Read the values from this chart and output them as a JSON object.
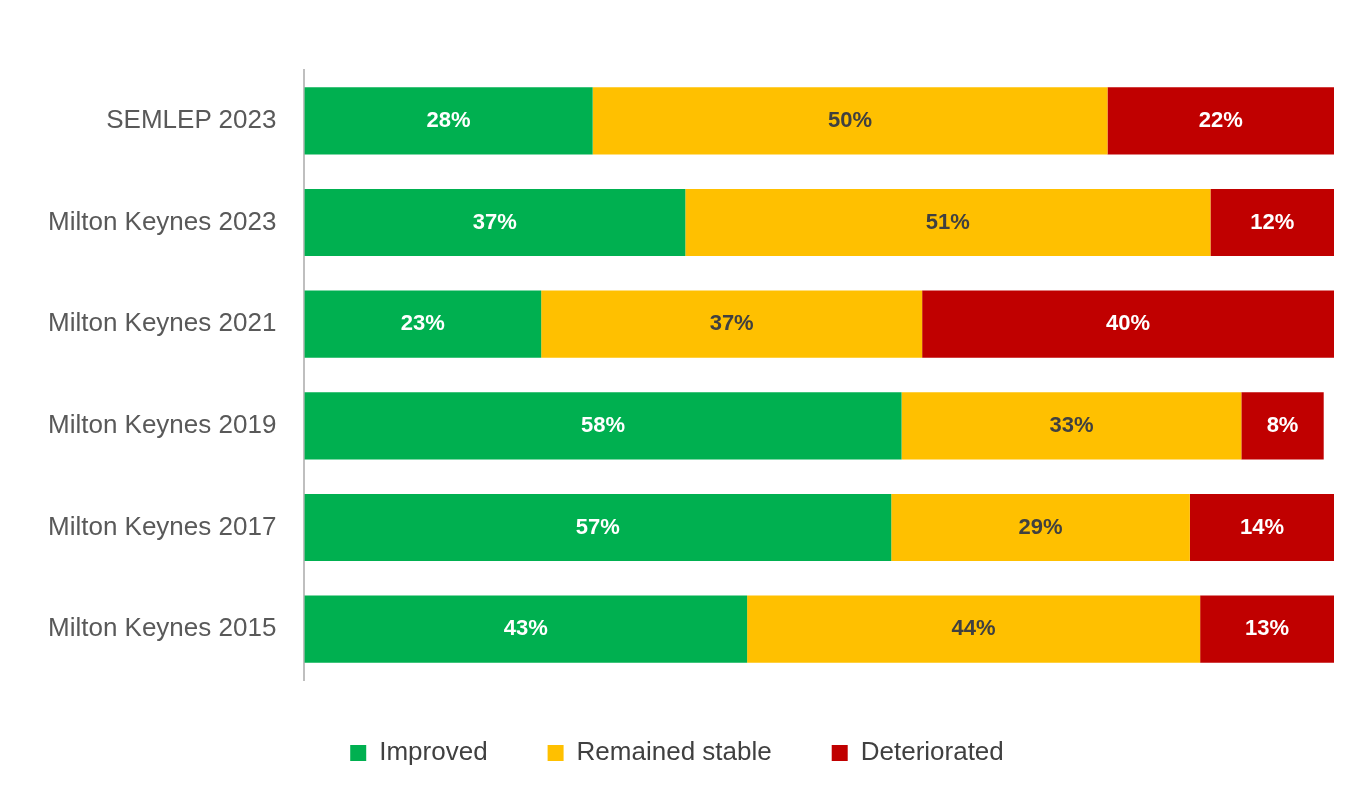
{
  "chart_data": {
    "type": "bar",
    "orientation": "horizontal",
    "stacked": true,
    "categories": [
      "SEMLEP 2023",
      "Milton Keynes 2023",
      "Milton Keynes 2021",
      "Milton Keynes 2019",
      "Milton Keynes 2017",
      "Milton Keynes 2015"
    ],
    "series": [
      {
        "name": "Improved",
        "color": "#00b050",
        "values": [
          28,
          37,
          23,
          58,
          57,
          43
        ],
        "value_labels": [
          "28%",
          "37%",
          "23%",
          "58%",
          "57%",
          "43%"
        ]
      },
      {
        "name": "Remained stable",
        "color": "#ffc000",
        "values": [
          50,
          51,
          37,
          33,
          29,
          44
        ],
        "value_labels": [
          "50%",
          "51%",
          "37%",
          "33%",
          "29%",
          "44%"
        ]
      },
      {
        "name": "Deteriorated",
        "color": "#c00000",
        "values": [
          22,
          12,
          40,
          8,
          14,
          13
        ],
        "value_labels": [
          "22%",
          "12%",
          "40%",
          "8%",
          "14%",
          "13%"
        ]
      }
    ],
    "xlim": [
      0,
      100
    ],
    "tick_labels": "y",
    "grid": false,
    "legend": "bottom"
  }
}
